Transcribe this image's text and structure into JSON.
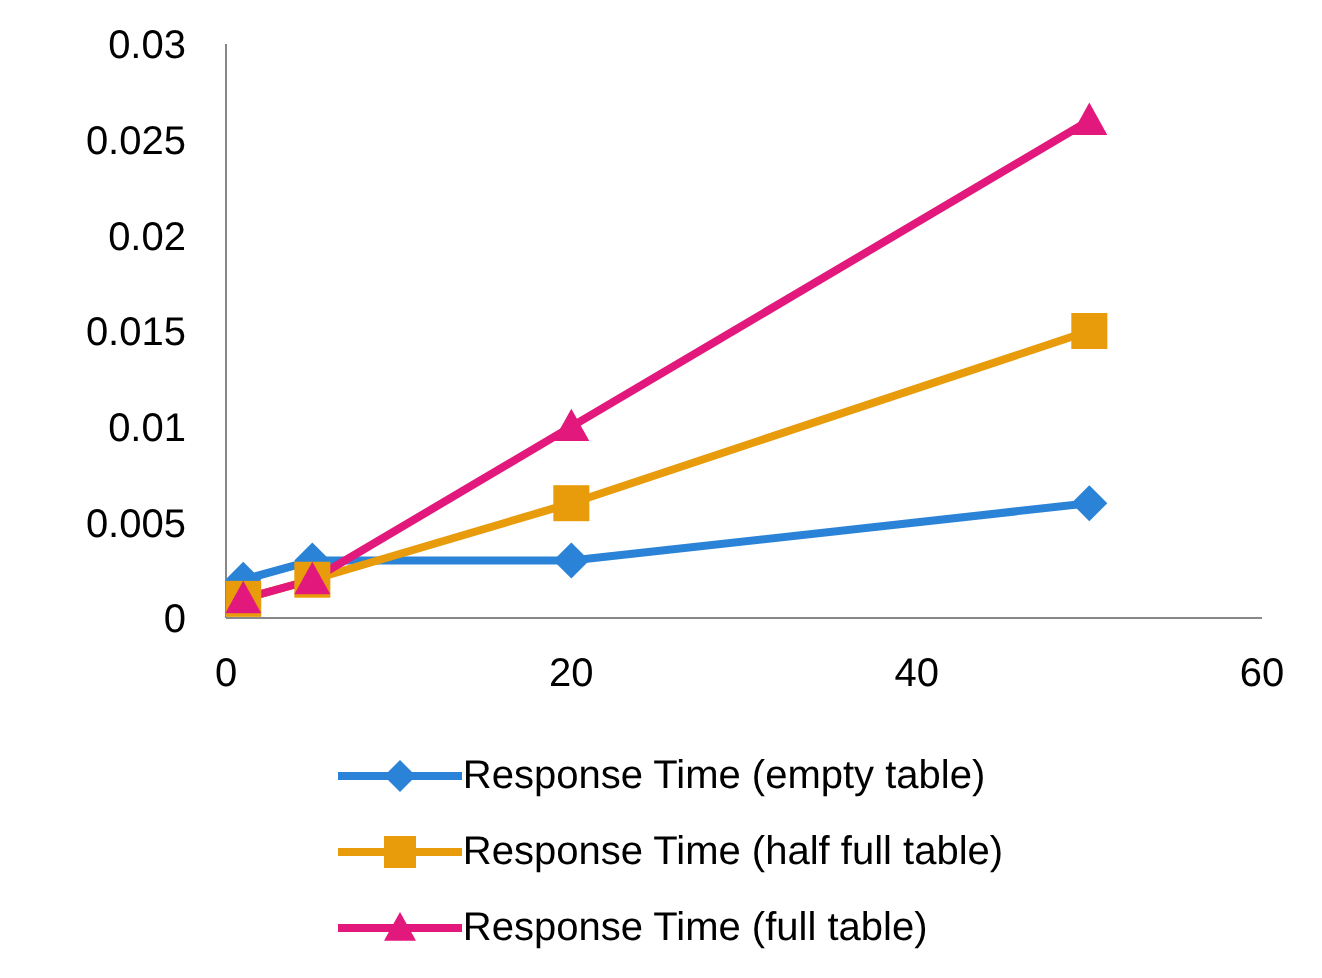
{
  "chart_data": {
    "type": "line",
    "x": [
      1,
      5,
      20,
      50
    ],
    "series": [
      {
        "name": "Response Time (empty table)",
        "color": "#2a83d6",
        "values": [
          0.002,
          0.003,
          0.003,
          0.006
        ],
        "marker": "diamond"
      },
      {
        "name": "Response Time (half full table)",
        "color": "#e89c0c",
        "values": [
          0.001,
          0.002,
          0.006,
          0.015
        ],
        "marker": "square"
      },
      {
        "name": "Response Time (full table)",
        "color": "#e2187c",
        "values": [
          0.001,
          0.002,
          0.01,
          0.026
        ],
        "marker": "triangle"
      }
    ],
    "xlim": [
      0,
      60
    ],
    "xticks": [
      0,
      20,
      40,
      60
    ],
    "ylim": [
      0,
      0.03
    ],
    "yticks": [
      0,
      0.005,
      0.01,
      0.015,
      0.02,
      0.025,
      0.03
    ],
    "grid": false,
    "legend": "bottom",
    "line_style": "solid"
  }
}
